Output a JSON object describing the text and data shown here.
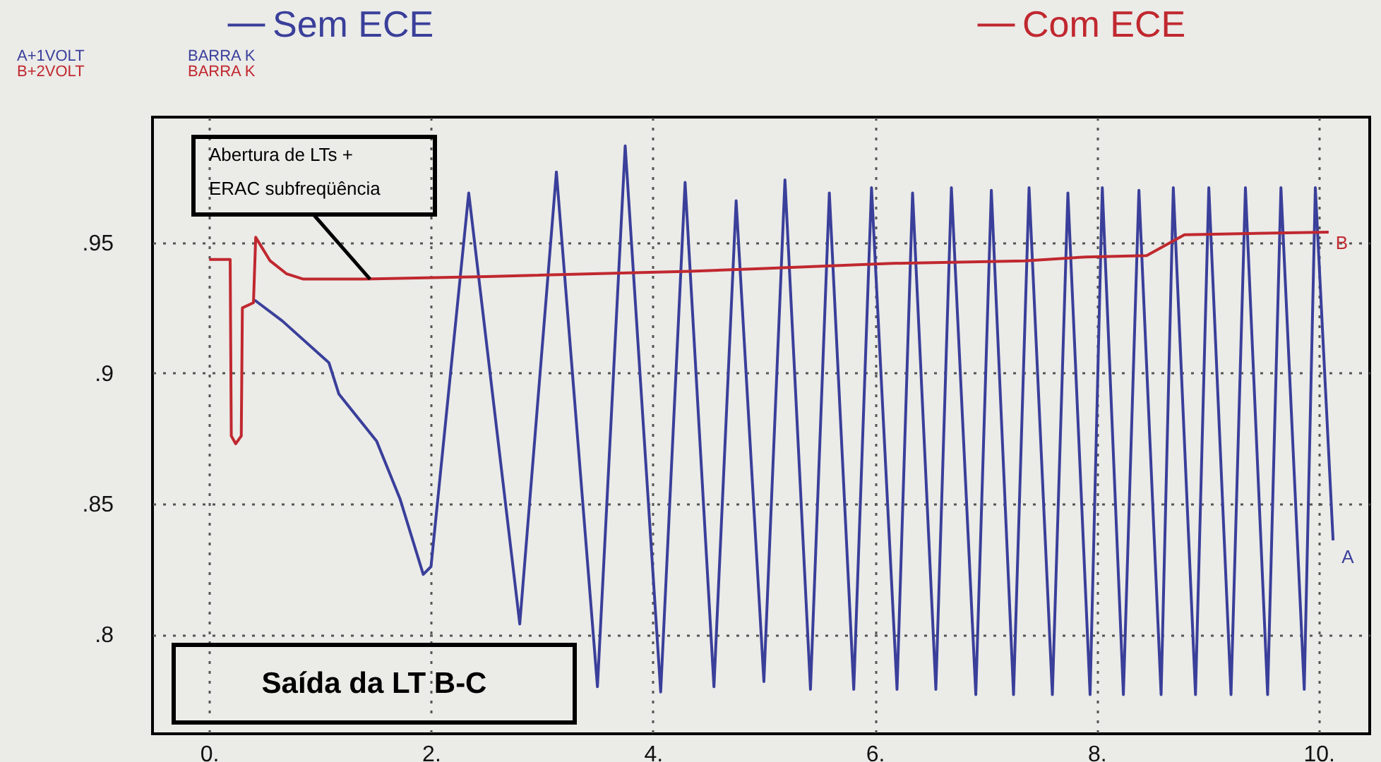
{
  "chart_data": {
    "type": "line",
    "legend": "top",
    "grid": true,
    "xlim": [
      -0.51,
      10.46
    ],
    "ylim": [
      0.762,
      0.998
    ],
    "xticks": [
      {
        "value": 0,
        "label": "0."
      },
      {
        "value": 2,
        "label": "2."
      },
      {
        "value": 4,
        "label": "4."
      },
      {
        "value": 6,
        "label": "6."
      },
      {
        "value": 8,
        "label": "8."
      },
      {
        "value": 10,
        "label": "10."
      }
    ],
    "yticks": [
      {
        "value": 0.8,
        "label": ".8"
      },
      {
        "value": 0.85,
        "label": ".85"
      },
      {
        "value": 0.9,
        "label": ".9"
      },
      {
        "value": 0.95,
        "label": ".95"
      }
    ],
    "series": [
      {
        "name": "Sem ECE",
        "color": "#3a3f9a",
        "x": [
          0.41,
          0.66,
          1.08,
          1.17,
          1.51,
          1.72,
          1.93,
          2.0,
          2.34,
          2.8,
          3.13,
          3.5,
          3.75,
          4.07,
          4.29,
          4.55,
          4.75,
          5.0,
          5.19,
          5.42,
          5.59,
          5.81,
          5.97,
          6.2,
          6.34,
          6.55,
          6.69,
          6.91,
          7.05,
          7.25,
          7.39,
          7.6,
          7.74,
          7.94,
          8.05,
          8.24,
          8.38,
          8.58,
          8.69,
          8.89,
          9.01,
          9.21,
          9.34,
          9.54,
          9.66,
          9.87,
          9.97,
          10.13
        ],
        "values": [
          0.928,
          0.92,
          0.904,
          0.892,
          0.874,
          0.852,
          0.823,
          0.826,
          0.969,
          0.804,
          0.977,
          0.78,
          0.987,
          0.778,
          0.973,
          0.78,
          0.966,
          0.782,
          0.974,
          0.779,
          0.969,
          0.779,
          0.971,
          0.779,
          0.969,
          0.779,
          0.971,
          0.777,
          0.97,
          0.777,
          0.971,
          0.777,
          0.969,
          0.777,
          0.971,
          0.777,
          0.97,
          0.777,
          0.971,
          0.777,
          0.971,
          0.777,
          0.971,
          0.777,
          0.971,
          0.779,
          0.971,
          0.836
        ]
      },
      {
        "name": "Com ECE",
        "color": "#c0282f",
        "x": [
          0,
          0.19,
          0.2,
          0.24,
          0.29,
          0.3,
          0.4,
          0.42,
          0.55,
          0.7,
          0.85,
          1.4,
          2.5,
          4.34,
          4.97,
          6.12,
          7.35,
          7.9,
          8.45,
          8.79,
          10.09
        ],
        "values": [
          0.9435,
          0.9435,
          0.876,
          0.873,
          0.876,
          0.925,
          0.927,
          0.952,
          0.943,
          0.938,
          0.936,
          0.936,
          0.937,
          0.939,
          0.94,
          0.942,
          0.943,
          0.9445,
          0.945,
          0.953,
          0.954
        ]
      }
    ],
    "annotations": [
      {
        "text": "Abertura de LTs +\nERAC subfreqüência",
        "x": 1.45,
        "y": 0.936
      },
      "Saída da LT B-C",
      "A+1VOLT",
      "B+2VOLT",
      "BARRA K",
      "BARRA K",
      {
        "text": "A",
        "x": 10.13,
        "y": 0.836
      },
      {
        "text": "B",
        "x": 10.09,
        "y": 0.954
      }
    ]
  }
}
